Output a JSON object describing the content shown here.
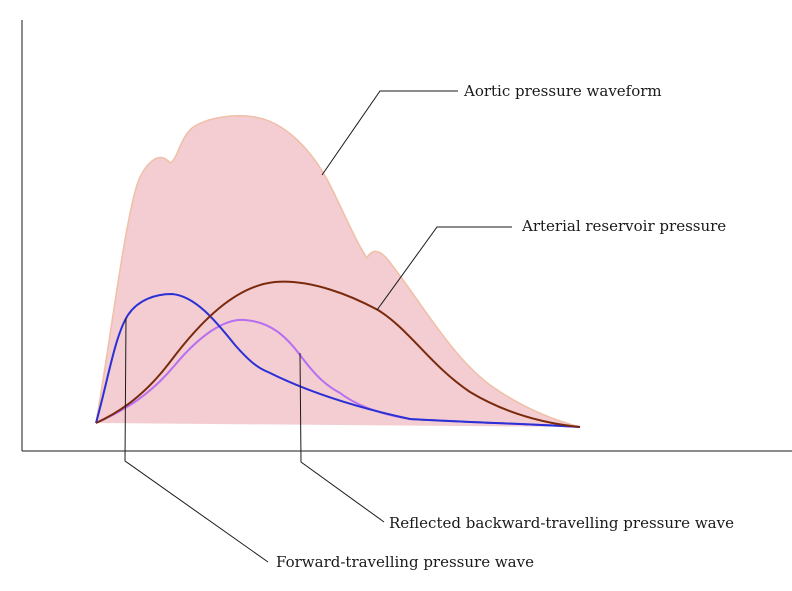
{
  "diagram": {
    "labels": {
      "aortic": "Aortic pressure waveform",
      "reservoir": "Arterial reservoir pressure",
      "reflected": "Reflected backward-travelling pressure wave",
      "forward": "Forward-travelling pressure wave"
    },
    "colors": {
      "aortic_fill": "#f3cdd2",
      "aortic_stroke": "#f0c0a8",
      "reservoir": "#7a2a0c",
      "forward": "#2a2fd6",
      "reflected": "#b86ef0",
      "leader": "#1a1a1a",
      "axis": "#1a1a1a"
    }
  }
}
